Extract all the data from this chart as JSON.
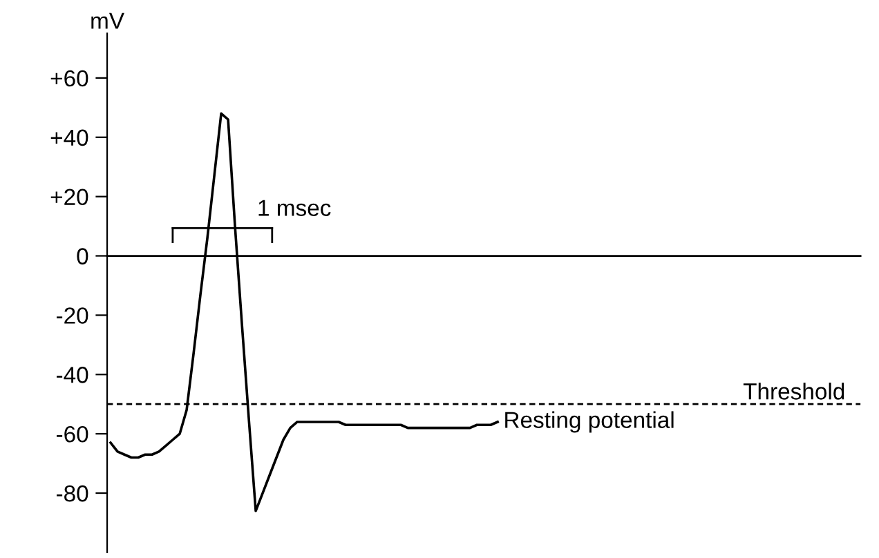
{
  "chart_data": {
    "type": "line",
    "ylabel": "mV",
    "categories": [
      null,
      null,
      null,
      null,
      null,
      null,
      null,
      null,
      null,
      null,
      null,
      null,
      null,
      null,
      null,
      null,
      null,
      null,
      null,
      null,
      null,
      null,
      null,
      null,
      null,
      null,
      null,
      null,
      null,
      null,
      null,
      null,
      null,
      null,
      null,
      null,
      null,
      null,
      null,
      null,
      null,
      null,
      null,
      null,
      null,
      null,
      null,
      null,
      null,
      null,
      null,
      null,
      null,
      null,
      null,
      null,
      null,
      null,
      null,
      null,
      null,
      null,
      null,
      null,
      null,
      null,
      null,
      null,
      null,
      null,
      null,
      null,
      null,
      null,
      null,
      null,
      null,
      null,
      null,
      null,
      null,
      null,
      null,
      null,
      null,
      null,
      null,
      null,
      null,
      null,
      null,
      null,
      null,
      null,
      null,
      null,
      null,
      null,
      null,
      null,
      null,
      null,
      null,
      null,
      null,
      null,
      null,
      null,
      null
    ],
    "series": [
      {
        "color": "#000000",
        "values": [
          -63,
          -66,
          -67,
          -68,
          -68,
          -67,
          -67,
          -66,
          -64,
          -62,
          -60,
          -52,
          -33,
          -13,
          6,
          27,
          48,
          46,
          10,
          -23,
          -55,
          -86,
          -80,
          -74,
          -68,
          -62,
          -58,
          -56,
          -56,
          -56,
          -56,
          -56,
          -56,
          -56,
          -57,
          -57,
          -57,
          -57,
          -57,
          -57,
          -57,
          -57,
          -57,
          -58,
          -58,
          -58,
          -58,
          -58,
          -58,
          -58,
          -58,
          -58,
          -58,
          -57,
          -57,
          -57,
          -56,
          null,
          null,
          null,
          null,
          null,
          null,
          null,
          null,
          null,
          null,
          null,
          null,
          null,
          null,
          null,
          null,
          null,
          null,
          null,
          null,
          null,
          null,
          null,
          null,
          null,
          null,
          null,
          null,
          null,
          null,
          null,
          null,
          null,
          null,
          null,
          null,
          null,
          null,
          null,
          null,
          null,
          null,
          null,
          null,
          null,
          null,
          null,
          null,
          null,
          null,
          null,
          null
        ]
      }
    ],
    "ylim": [
      -100,
      75
    ],
    "yticks": [
      {
        "value": 60,
        "label": "+60"
      },
      {
        "value": 40,
        "label": "+40"
      },
      {
        "value": 20,
        "label": "+20"
      },
      0,
      -20,
      -40,
      -60,
      -80
    ],
    "ref_lines": [
      {
        "axis": "y",
        "value": 0,
        "label": null,
        "line_style": "solid"
      },
      {
        "axis": "y",
        "value": -50,
        "label": "Threshold",
        "line_style": "dashed"
      }
    ],
    "annotations": [
      "1 msec",
      "Resting potential"
    ],
    "tick_labels": "y",
    "grid": false,
    "legend": false,
    "marker": "none",
    "line_style": "solid"
  }
}
